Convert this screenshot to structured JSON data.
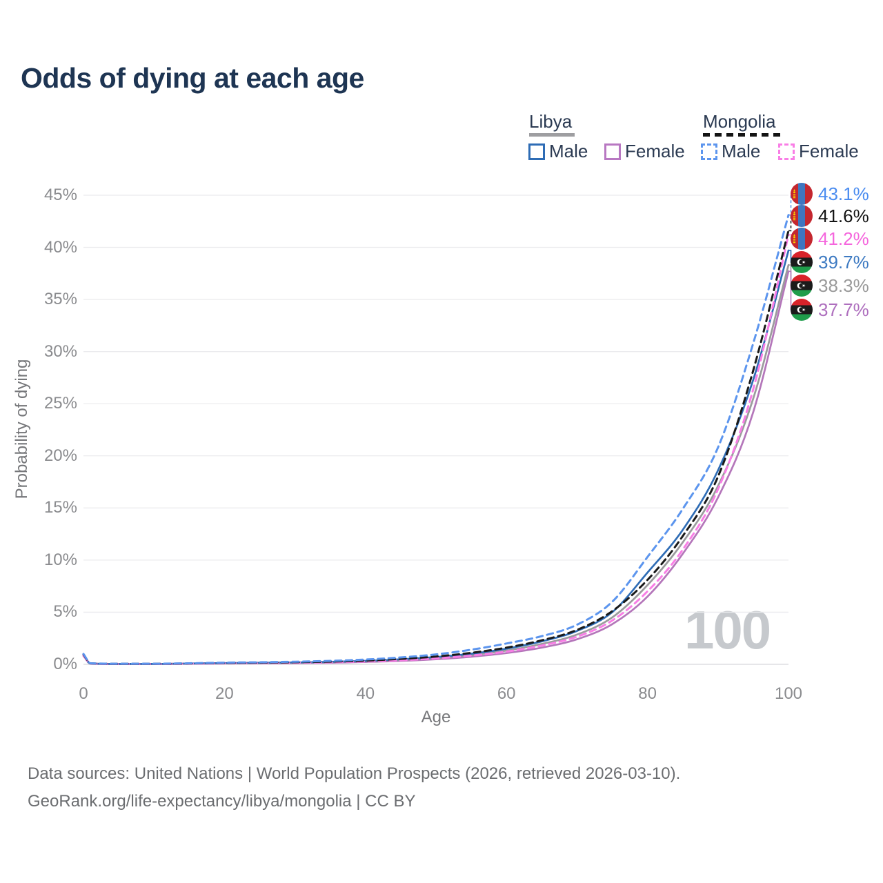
{
  "title": "Odds of dying at each age",
  "watermark_age": "100",
  "legend": {
    "libya": {
      "label": "Libya",
      "male": "Male",
      "female": "Female",
      "underline_color": "#9e9ea1",
      "male_color": "#2e6cb5",
      "female_color": "#b878c2"
    },
    "mongolia": {
      "label": "Mongolia",
      "male": "Male",
      "female": "Female",
      "underline_color": "#141414",
      "male_color": "#5c95ee",
      "female_color": "#f97ee6"
    }
  },
  "axes": {
    "x_label": "Age",
    "y_label": "Probability of dying",
    "x_ticks": [
      "0",
      "20",
      "40",
      "60",
      "80",
      "100"
    ],
    "y_ticks": [
      "0%",
      "5%",
      "10%",
      "15%",
      "20%",
      "25%",
      "30%",
      "35%",
      "40%",
      "45%"
    ]
  },
  "chart_data": {
    "type": "line",
    "title": "Odds of dying at each age",
    "xlabel": "Age",
    "ylabel": "Probability of dying",
    "xlim": [
      0,
      100
    ],
    "ylim_pct": [
      0,
      45
    ],
    "grid": "horizontal",
    "legend_position": "top-right",
    "x": [
      0,
      1,
      5,
      10,
      15,
      20,
      25,
      30,
      35,
      40,
      45,
      50,
      55,
      60,
      65,
      70,
      75,
      80,
      85,
      90,
      95,
      100
    ],
    "series": [
      {
        "name": "Mongolia Male",
        "country": "mongolia",
        "dashed": true,
        "color": "#5c95ee",
        "end_label": "43.1%",
        "label_color": "#4a8cf0",
        "values_pct": [
          1.0,
          0.1,
          0.06,
          0.06,
          0.1,
          0.16,
          0.2,
          0.25,
          0.33,
          0.46,
          0.66,
          0.95,
          1.4,
          2.0,
          2.7,
          3.8,
          6.0,
          10.3,
          14.9,
          20.8,
          30.8,
          43.1
        ]
      },
      {
        "name": "Mongolia Average",
        "country": "mongolia",
        "dashed": true,
        "color": "#1a1a1a",
        "end_label": "41.6%",
        "label_color": "#141414",
        "values_pct": [
          0.95,
          0.09,
          0.05,
          0.05,
          0.08,
          0.13,
          0.16,
          0.2,
          0.26,
          0.36,
          0.52,
          0.75,
          1.1,
          1.6,
          2.3,
          3.3,
          5.1,
          8.1,
          12.3,
          18.0,
          28.2,
          41.6
        ]
      },
      {
        "name": "Mongolia Female",
        "country": "mongolia",
        "dashed": true,
        "color": "#f97ee6",
        "end_label": "41.2%",
        "label_color": "#f566dd",
        "values_pct": [
          0.85,
          0.08,
          0.04,
          0.04,
          0.06,
          0.1,
          0.12,
          0.15,
          0.2,
          0.27,
          0.39,
          0.57,
          0.84,
          1.22,
          1.8,
          2.65,
          4.2,
          7.0,
          11.0,
          16.8,
          26.4,
          41.2
        ]
      },
      {
        "name": "Libya Male",
        "country": "libya",
        "dashed": false,
        "color": "#2e6cb5",
        "end_label": "39.7%",
        "label_color": "#3d7ac2",
        "values_pct": [
          0.9,
          0.08,
          0.04,
          0.04,
          0.08,
          0.12,
          0.15,
          0.18,
          0.24,
          0.33,
          0.48,
          0.7,
          1.02,
          1.5,
          2.2,
          3.2,
          5.0,
          8.8,
          12.9,
          18.6,
          27.3,
          39.7
        ]
      },
      {
        "name": "Libya Average",
        "country": "libya",
        "dashed": false,
        "color": "#9b9b9d",
        "end_label": "38.3%",
        "label_color": "#9a9a9a",
        "values_pct": [
          0.88,
          0.07,
          0.04,
          0.04,
          0.07,
          0.1,
          0.13,
          0.16,
          0.21,
          0.29,
          0.42,
          0.61,
          0.9,
          1.32,
          1.95,
          2.85,
          4.5,
          7.6,
          11.7,
          17.1,
          25.5,
          38.3
        ]
      },
      {
        "name": "Libya Female",
        "country": "libya",
        "dashed": false,
        "color": "#b476ba",
        "end_label": "37.7%",
        "label_color": "#ae6fbe",
        "values_pct": [
          0.8,
          0.06,
          0.03,
          0.03,
          0.05,
          0.08,
          0.1,
          0.12,
          0.16,
          0.23,
          0.33,
          0.49,
          0.73,
          1.08,
          1.6,
          2.4,
          3.85,
          6.5,
          10.6,
          16.0,
          24.2,
          37.7
        ]
      }
    ]
  },
  "flag_colors": {
    "mongolia_red": "#c4272f",
    "mongolia_blue": "#3f76c0",
    "mongolia_yellow": "#f9cf02",
    "libya_red": "#d8232a",
    "libya_black": "#1b1b1b",
    "libya_green": "#1f9d4b"
  },
  "footer": {
    "line1": "Data sources: United Nations | World Population Prospects (2026, retrieved 2026-03-10).",
    "line2": "GeoRank.org/life-expectancy/libya/mongolia | CC BY"
  }
}
